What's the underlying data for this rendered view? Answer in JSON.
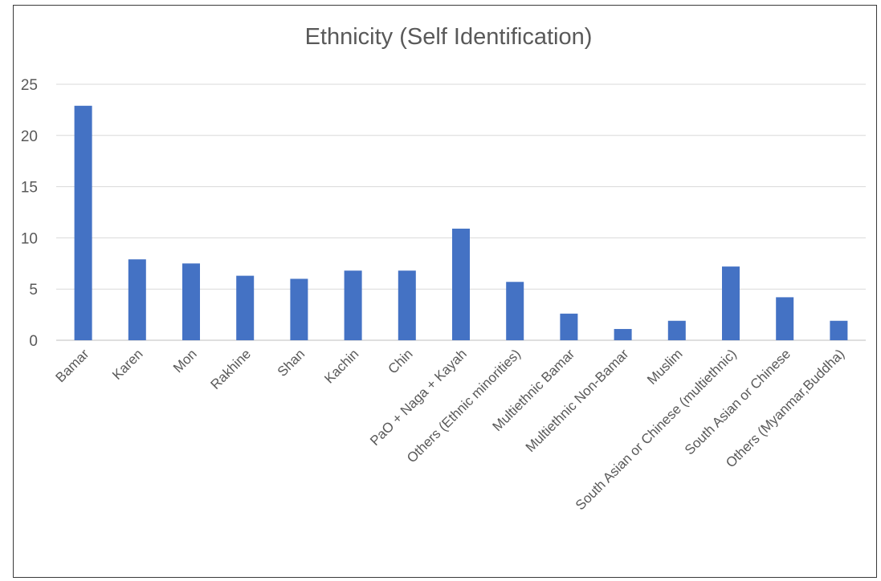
{
  "chart_data": {
    "type": "bar",
    "title": "Ethnicity (Self Identification)",
    "xlabel": "",
    "ylabel": "",
    "ylim": [
      0,
      25
    ],
    "yticks": [
      0,
      5,
      10,
      15,
      20,
      25
    ],
    "grid": true,
    "legend": "none",
    "bar_color": "#4472c4",
    "categories": [
      "Bamar",
      "Karen",
      "Mon",
      "Rakhine",
      "Shan",
      "Kachin",
      "Chin",
      "PaO + Naga + Kayah",
      "Others (Ethnic minorities)",
      "Multiethnic Bamar",
      "Multiethnic Non-Bamar",
      "Muslim",
      "South Asian or Chinese (multiethnic)",
      "South Asian or Chinese",
      "Others (Myanmar,Buddha)"
    ],
    "values": [
      22.9,
      7.9,
      7.5,
      6.3,
      6.0,
      6.8,
      6.8,
      10.9,
      5.7,
      2.6,
      1.1,
      1.9,
      7.2,
      4.2,
      1.9
    ]
  }
}
